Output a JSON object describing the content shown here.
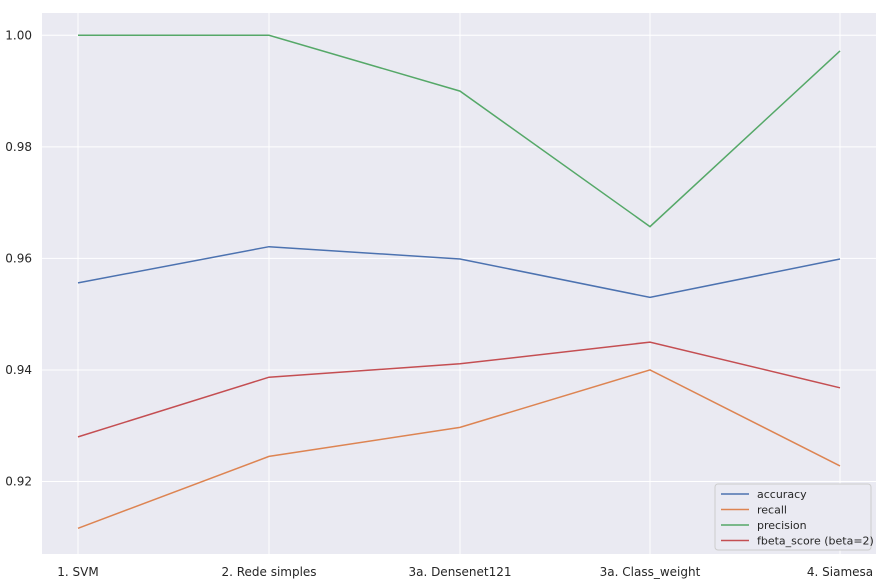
{
  "chart_data": {
    "type": "line",
    "title": "",
    "xlabel": "",
    "ylabel": "",
    "categories": [
      "1. SVM",
      "2. Rede simples",
      "3a. Densenet121",
      "3a. Class_weight",
      "4. Siamesa"
    ],
    "ylim": [
      0.907,
      1.004
    ],
    "yticks": [
      0.92,
      0.94,
      0.96,
      0.98,
      1.0
    ],
    "ytick_labels": [
      "0.92",
      "0.94",
      "0.96",
      "0.98",
      "1.00"
    ],
    "grid": true,
    "legend_position": "bottom-right",
    "style": {
      "background": "#eaeaf2",
      "grid_color": "#ffffff"
    },
    "series": [
      {
        "name": "accuracy",
        "color": "#4c72b0",
        "values": [
          0.9556,
          0.9621,
          0.9599,
          0.953,
          0.9599
        ]
      },
      {
        "name": "recall",
        "color": "#dd8452",
        "values": [
          0.9116,
          0.9245,
          0.9297,
          0.94,
          0.9228
        ]
      },
      {
        "name": "precision",
        "color": "#55a868",
        "values": [
          1.0,
          1.0,
          0.99,
          0.9657,
          0.9972
        ]
      },
      {
        "name": "fbeta_score (beta=2)",
        "color": "#c44e52",
        "values": [
          0.928,
          0.9387,
          0.9411,
          0.945,
          0.9368
        ]
      }
    ]
  }
}
